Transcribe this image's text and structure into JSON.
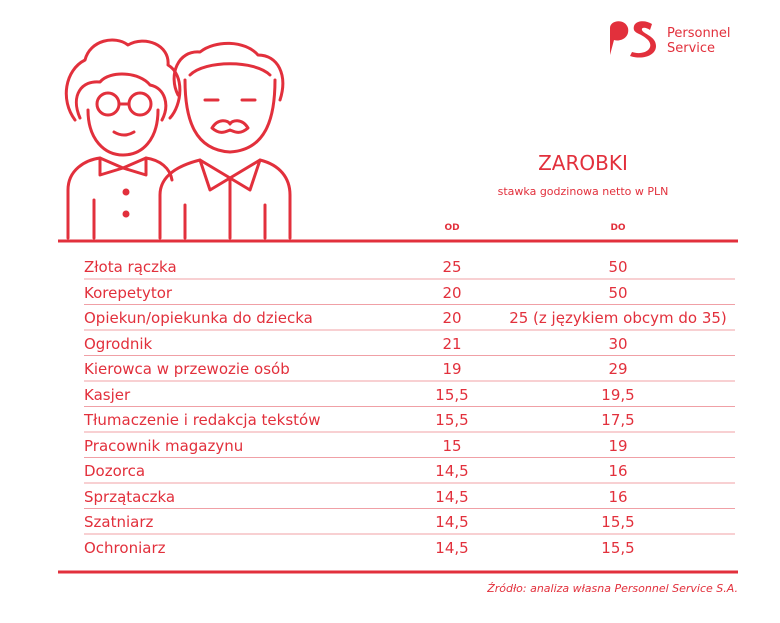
{
  "logo": {
    "line1": "Personnel",
    "line2": "Service"
  },
  "title": "ZAROBKI",
  "subtitle": "stawka godzinowa netto w PLN",
  "table": {
    "columns": [
      "OD",
      "DO"
    ],
    "rows": [
      [
        "Złota rączka",
        "25",
        "50"
      ],
      [
        "Korepetytor",
        "20",
        "50"
      ],
      [
        "Opiekun/opiekunka do dziecka",
        "20",
        "25 (z językiem obcym do 35)"
      ],
      [
        "Ogrodnik",
        "21",
        "30"
      ],
      [
        "Kierowca w przewozie osób",
        "19",
        "29"
      ],
      [
        "Kasjer",
        "15,5",
        "19,5"
      ],
      [
        "Tłumaczenie i redakcja tekstów",
        "15,5",
        "17,5"
      ],
      [
        "Pracownik magazynu",
        "15",
        "19"
      ],
      [
        "Dozorca",
        "14,5",
        "16"
      ],
      [
        "Sprzątaczka",
        "14,5",
        "16"
      ],
      [
        "Szatniarz",
        "14,5",
        "15,5"
      ],
      [
        "Ochroniarz",
        "14,5",
        "15,5"
      ]
    ]
  },
  "source": "Źródło: analiza własna Personnel Service S.A."
}
